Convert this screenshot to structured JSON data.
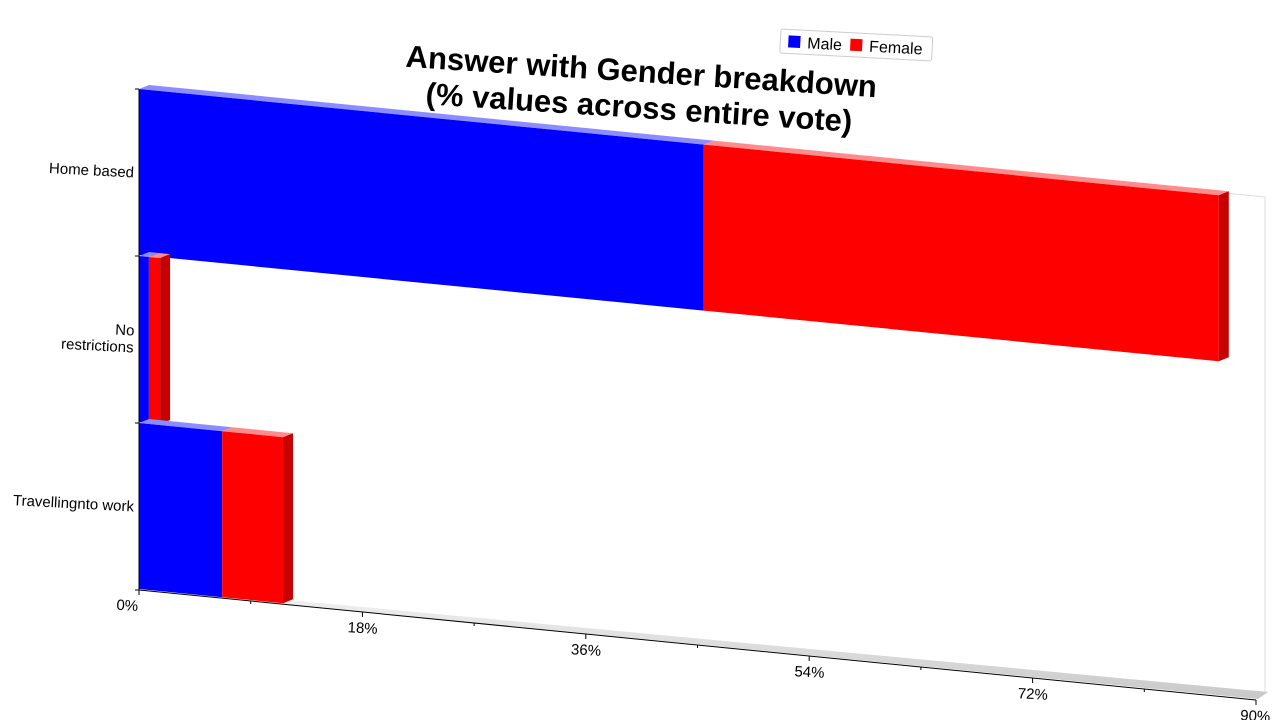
{
  "chart_data": {
    "type": "bar",
    "orientation": "horizontal",
    "stacked": true,
    "title": "Answer with Gender breakdown\n(% values across entire vote)",
    "categories": [
      "Home based",
      "No\nrestrictions",
      "Travellingnto work"
    ],
    "series": [
      {
        "name": "Male",
        "color": "#0000ff",
        "values": [
          45.5,
          0.8,
          6.7
        ]
      },
      {
        "name": "Female",
        "color": "#ff0000",
        "values": [
          41.5,
          0.9,
          4.9
        ]
      }
    ],
    "xlim": [
      0,
      90
    ],
    "xticks": [
      "0%",
      "18%",
      "36%",
      "54%",
      "72%",
      "90%"
    ],
    "legend": "top-right",
    "grid": false
  }
}
